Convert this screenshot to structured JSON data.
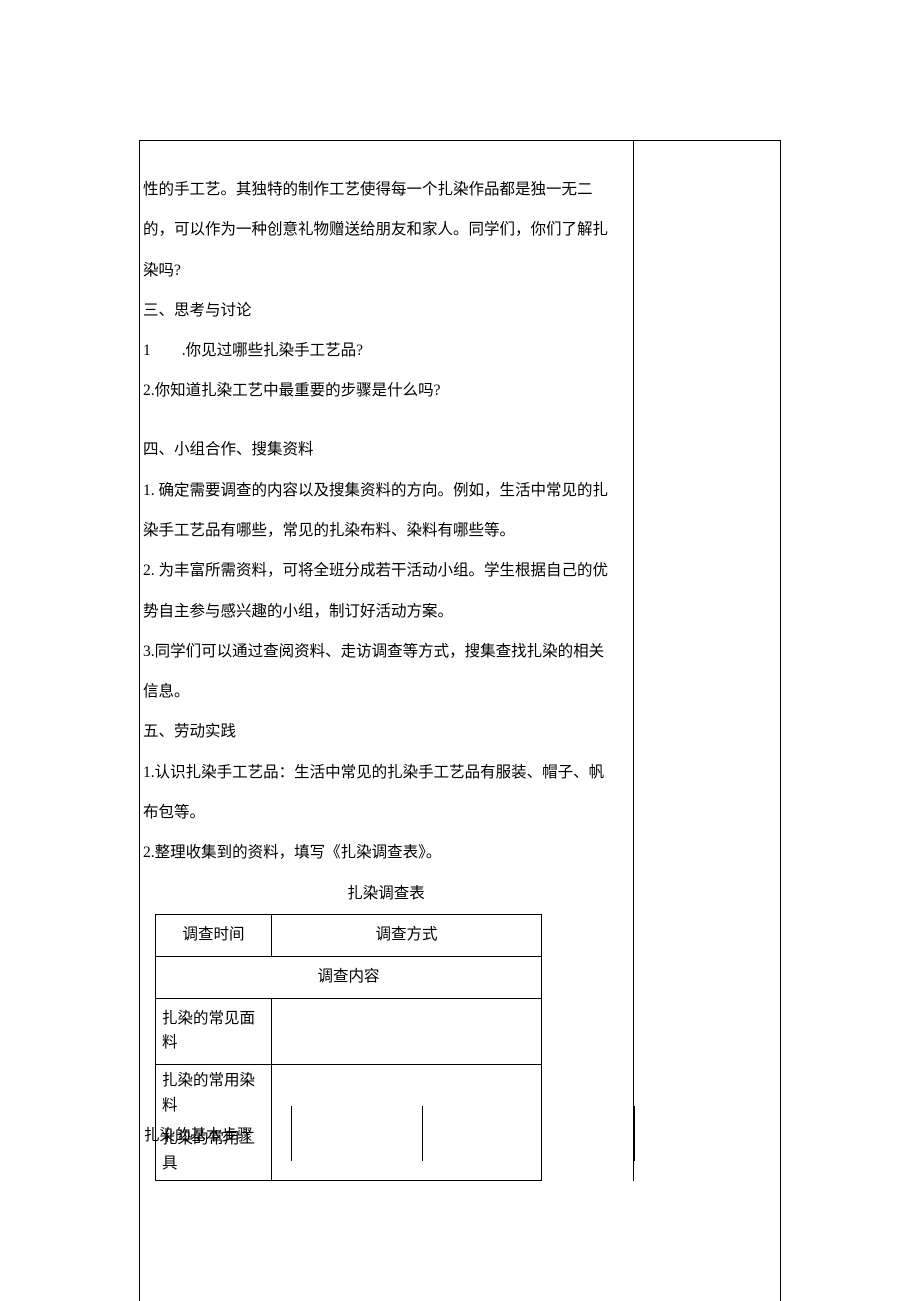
{
  "main": {
    "p1": "性的手工艺。其独特的制作工艺使得每一个扎染作品都是独一无二",
    "p2": "的，可以作为一种创意礼物赠送给朋友和家人。同学们，你们了解扎",
    "p3": "染吗?",
    "p4": "三、思考与讨论",
    "p5_num": "1",
    "p5_text": ".你见过哪些扎染手工艺品?",
    "p6": "2.你知道扎染工艺中最重要的步骤是什么吗?",
    "p7": "四、小组合作、搜集资料",
    "p8": "1. 确定需要调查的内容以及搜集资料的方向。例如，生活中常见的扎",
    "p9": "染手工艺品有哪些，常见的扎染布料、染料有哪些等。",
    "p10": "2. 为丰富所需资料，可将全班分成若干活动小组。学生根据自己的优",
    "p11": "势自主参与感兴趣的小组，制订好活动方案。",
    "p12": "3.同学们可以通过查阅资料、走访调查等方式，搜集查找扎染的相关",
    "p13": "信息。",
    "p14": "五、劳动实践",
    "p15": "1.认识扎染手工艺品：生活中常见的扎染手工艺品有服装、帽子、帆",
    "p16": "布包等。",
    "p17": "2.整理收集到的资料，填写《扎染调查表》。"
  },
  "survey": {
    "title": "扎染调查表",
    "r1c1": "调查时间",
    "r1c2": "调查方式",
    "r2": "调查内容",
    "r3": "扎染的常见面料",
    "r4": "扎染的常用染料",
    "r5": "扎染的常用工具"
  },
  "bottom": {
    "label": "扎染的基本步骤"
  }
}
